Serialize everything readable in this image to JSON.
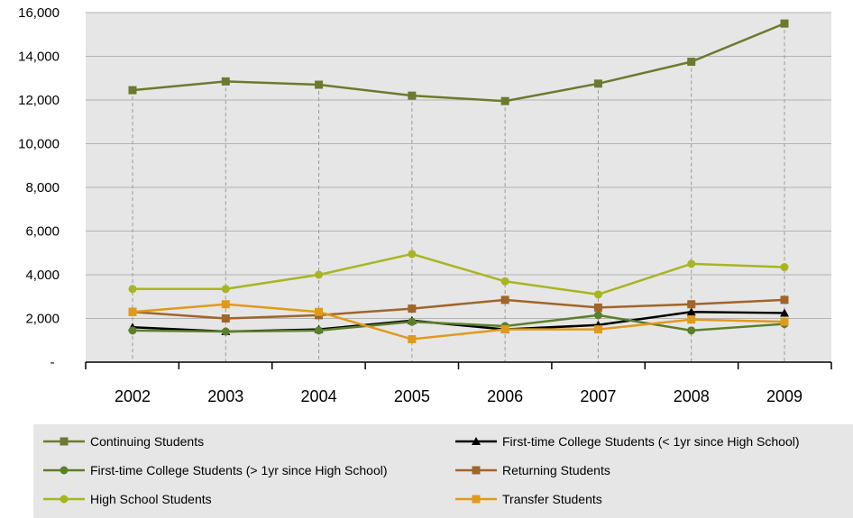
{
  "chart_data": {
    "type": "line",
    "title": "",
    "xlabel": "",
    "ylabel": "",
    "categories": [
      "2002",
      "2003",
      "2004",
      "2005",
      "2006",
      "2007",
      "2008",
      "2009"
    ],
    "ylim": [
      0,
      16000
    ],
    "y_ticks": [
      0,
      2000,
      4000,
      6000,
      8000,
      10000,
      12000,
      14000,
      16000
    ],
    "y_tick_labels": [
      "-",
      "2,000",
      "4,000",
      "6,000",
      "8,000",
      "10,000",
      "12,000",
      "14,000",
      "16,000"
    ],
    "grid": "horizontal",
    "drop_lines": true,
    "legend_position": "bottom",
    "series": [
      {
        "name": "Continuing Students",
        "color": "#6B7A2E",
        "marker": "square",
        "values": [
          12450,
          12850,
          12700,
          12200,
          11950,
          12750,
          13750,
          15500
        ]
      },
      {
        "name": "First-time College Students (< 1yr since High School)",
        "color": "#000000",
        "marker": "triangle",
        "values": [
          1600,
          1400,
          1500,
          1900,
          1500,
          1700,
          2300,
          2250
        ]
      },
      {
        "name": "First-time College Students (> 1yr since High School)",
        "color": "#5B7F2B",
        "marker": "circle",
        "values": [
          1450,
          1400,
          1450,
          1850,
          1650,
          2150,
          1450,
          1750
        ]
      },
      {
        "name": "Returning Students",
        "color": "#A0652A",
        "marker": "square",
        "values": [
          2300,
          2000,
          2150,
          2450,
          2850,
          2500,
          2650,
          2850
        ]
      },
      {
        "name": "High School Students",
        "color": "#A8B522",
        "marker": "circle",
        "values": [
          3350,
          3350,
          4000,
          4950,
          3700,
          3100,
          4500,
          4350
        ]
      },
      {
        "name": "Transfer Students",
        "color": "#E09A1A",
        "marker": "square",
        "values": [
          2300,
          2650,
          2300,
          1050,
          1500,
          1500,
          1950,
          1850
        ]
      }
    ]
  }
}
